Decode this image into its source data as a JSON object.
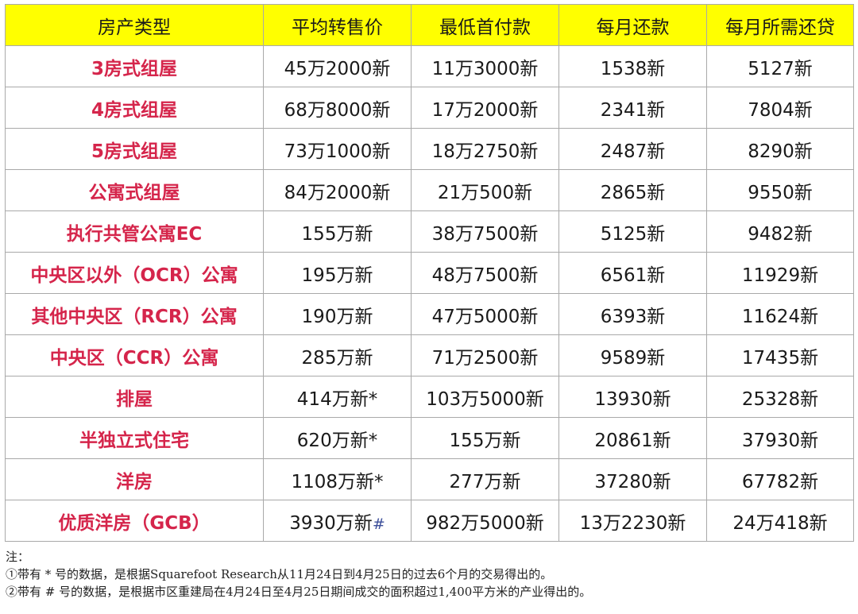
{
  "table": {
    "headers": [
      "房产类型",
      "平均转售价",
      "最低首付款",
      "每月还款",
      "每月所需还贷"
    ],
    "rows": [
      {
        "type": "3房式组屋",
        "price": "45万2000新",
        "price_mark": "",
        "down": "11万3000新",
        "monthly": "1538新",
        "income": "5127新"
      },
      {
        "type": "4房式组屋",
        "price": "68万8000新",
        "price_mark": "",
        "down": "17万2000新",
        "monthly": "2341新",
        "income": "7804新"
      },
      {
        "type": "5房式组屋",
        "price": "73万1000新",
        "price_mark": "",
        "down": "18万2750新",
        "monthly": "2487新",
        "income": "8290新"
      },
      {
        "type": "公寓式组屋",
        "price": "84万2000新",
        "price_mark": "",
        "down": "21万500新",
        "monthly": "2865新",
        "income": "9550新"
      },
      {
        "type": "执行共管公寓EC",
        "price": "155万新",
        "price_mark": "",
        "down": "38万7500新",
        "monthly": "5125新",
        "income": "9482新"
      },
      {
        "type": "中央区以外（OCR）公寓",
        "price": "195万新",
        "price_mark": "",
        "down": "48万7500新",
        "monthly": "6561新",
        "income": "11929新"
      },
      {
        "type": "其他中央区（RCR）公寓",
        "price": "190万新",
        "price_mark": "",
        "down": "47万5000新",
        "monthly": "6393新",
        "income": "11624新"
      },
      {
        "type": "中央区（CCR）公寓",
        "price": "285万新",
        "price_mark": "",
        "down": "71万2500新",
        "monthly": "9589新",
        "income": "17435新"
      },
      {
        "type": "排屋",
        "price": "414万新*",
        "price_mark": "",
        "down": "103万5000新",
        "monthly": "13930新",
        "income": "25328新"
      },
      {
        "type": "半独立式住宅",
        "price": "620万新*",
        "price_mark": "",
        "down": "155万新",
        "monthly": "20861新",
        "income": "37930新"
      },
      {
        "type": "洋房",
        "price": "1108万新*",
        "price_mark": "",
        "down": "277万新",
        "monthly": "37280新",
        "income": "67782新"
      },
      {
        "type": "优质洋房（GCB）",
        "price": "3930万新",
        "price_mark": "#",
        "down": "982万5000新",
        "monthly": "13万2230新",
        "income": "24万418新"
      }
    ]
  },
  "notes": {
    "title": "注：",
    "lines": [
      "①带有 * 号的数据，是根据Squarefoot Research从11月24日到4月25日的过去6个月的交易得出的。",
      "②带有 # 号的数据，是根据市区重建局在4月24日至4月25日期间成交的面积超过1,400平方米的产业得出的。"
    ]
  }
}
